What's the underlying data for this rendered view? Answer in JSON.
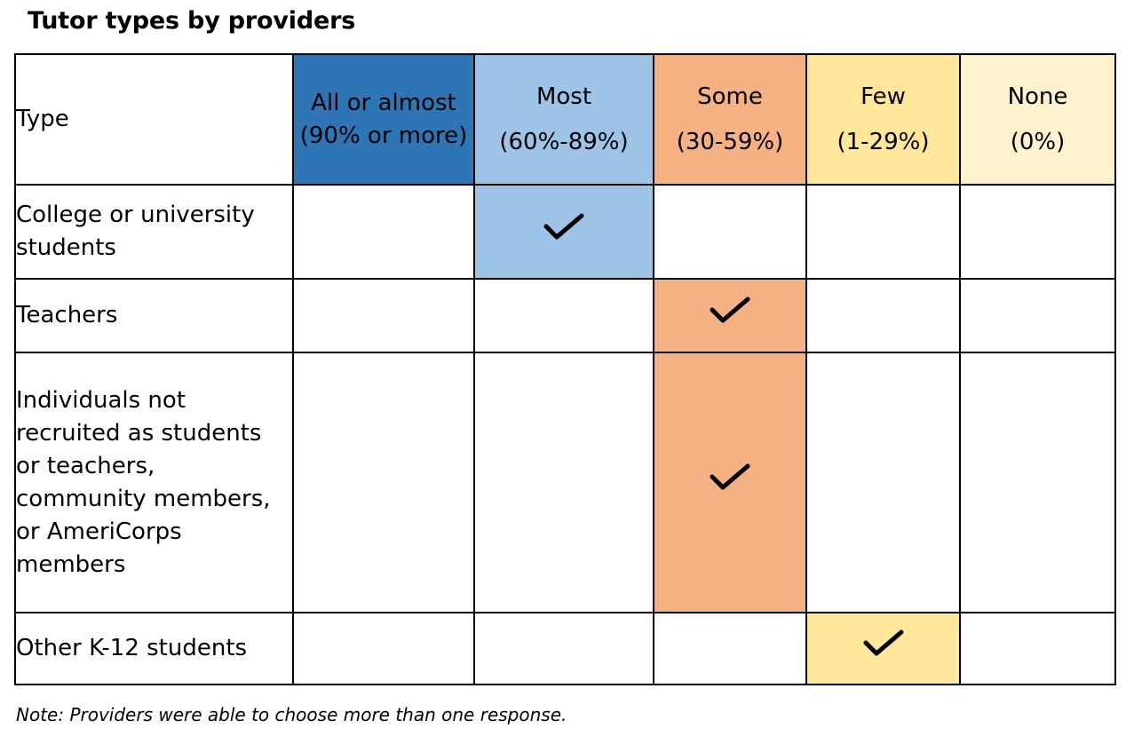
{
  "title": "Tutor types by providers",
  "note": "Note: Providers were able to choose more than one response.",
  "chart_data": {
    "type": "table",
    "header_first": "Type",
    "columns": [
      {
        "label": "All or almost",
        "range": "(90% or more)",
        "color": "#2E75B6"
      },
      {
        "label": "Most",
        "range": "(60%-89%)",
        "color": "#9DC3E6"
      },
      {
        "label": "Some",
        "range": "(30-59%)",
        "color": "#F4B183"
      },
      {
        "label": "Few",
        "range": "(1-29%)",
        "color": "#FFE699"
      },
      {
        "label": "None",
        "range": "(0%)",
        "color": "#FFF2CC"
      }
    ],
    "rows": [
      {
        "type": "College or university students",
        "selected": "Most"
      },
      {
        "type": "Teachers",
        "selected": "Some"
      },
      {
        "type": "Individuals not recruited as students or teachers, community members, or AmeriCorps members",
        "selected": "Some"
      },
      {
        "type": "Other K-12 students",
        "selected": "Few"
      }
    ]
  }
}
